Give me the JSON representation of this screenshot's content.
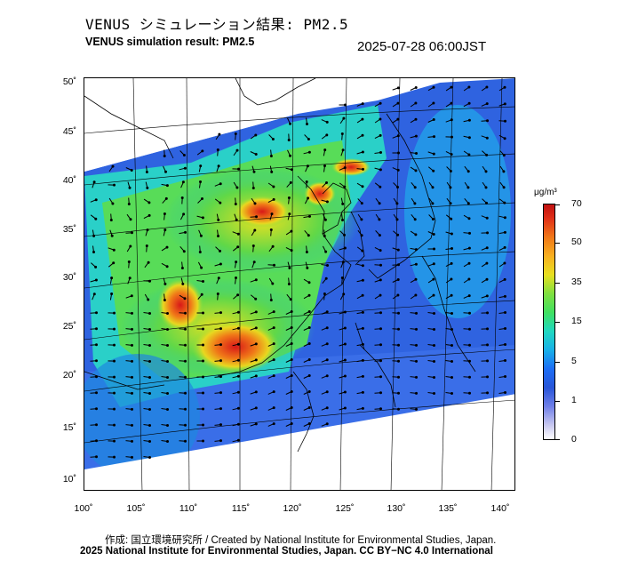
{
  "title": {
    "jp": "VENUS シミュレーション結果: PM2.5",
    "en": "VENUS simulation result: PM2.5",
    "timestamp": "2025-07-28 06:00JST"
  },
  "map": {
    "lat_labels": [
      "50˚",
      "45˚",
      "40˚",
      "35˚",
      "30˚",
      "25˚",
      "20˚",
      "15˚",
      "10˚"
    ],
    "lon_labels": [
      "100˚",
      "105˚",
      "110˚",
      "115˚",
      "120˚",
      "125˚",
      "130˚",
      "135˚",
      "140˚"
    ],
    "layers": [
      "coastlines",
      "graticule",
      "pm25-concentration",
      "wind-vectors"
    ]
  },
  "colorbar": {
    "unit": "μg/m³",
    "ticks": [
      "70",
      "50",
      "35",
      "15",
      "5",
      "1",
      "0"
    ],
    "colors": {
      "white": "#ffffff",
      "low_blue": "#2855d8",
      "cyan": "#18b0e8",
      "green": "#40e060",
      "yellow": "#e8e020",
      "orange": "#f07818",
      "red": "#c01010"
    }
  },
  "credits": {
    "line1": "作成: 国立環境研究所 / Created by National Institute for Environmental Studies, Japan.",
    "line2": "2025 National Institute for Environmental Studies, Japan. CC BY−NC 4.0 International"
  }
}
